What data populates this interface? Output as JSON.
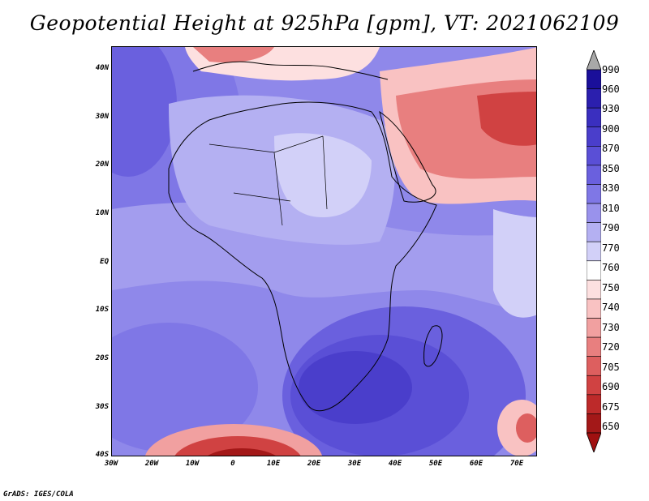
{
  "title": "Geopotential Height at 925hPa [gpm], VT: 2021062109",
  "credit": "GrADS: IGES/COLA",
  "lat_ticks": [
    "40N",
    "30N",
    "20N",
    "10N",
    "EQ",
    "10S",
    "20S",
    "30S",
    "40S"
  ],
  "lon_ticks": [
    "30W",
    "20W",
    "10W",
    "0",
    "10E",
    "20E",
    "30E",
    "40E",
    "50E",
    "60E",
    "70E"
  ],
  "colorbar": {
    "levels": [
      "990",
      "960",
      "930",
      "900",
      "870",
      "850",
      "830",
      "810",
      "790",
      "770",
      "760",
      "750",
      "740",
      "730",
      "720",
      "705",
      "690",
      "675",
      "650"
    ],
    "colors": [
      "#1a0f9a",
      "#2b1fae",
      "#3a2fbf",
      "#4a3ecb",
      "#5a4fd6",
      "#6a60de",
      "#7f77e6",
      "#9992ec",
      "#b4b0f2",
      "#d2d0f8",
      "#ffffff",
      "#fde0e0",
      "#f9c2c2",
      "#f1a0a0",
      "#e87f7f",
      "#dd5f5f",
      "#d04242",
      "#bd2a2a",
      "#a31818"
    ],
    "top_arrow_color": "#a8a8a8",
    "bottom_arrow_color": "#a01010"
  }
}
